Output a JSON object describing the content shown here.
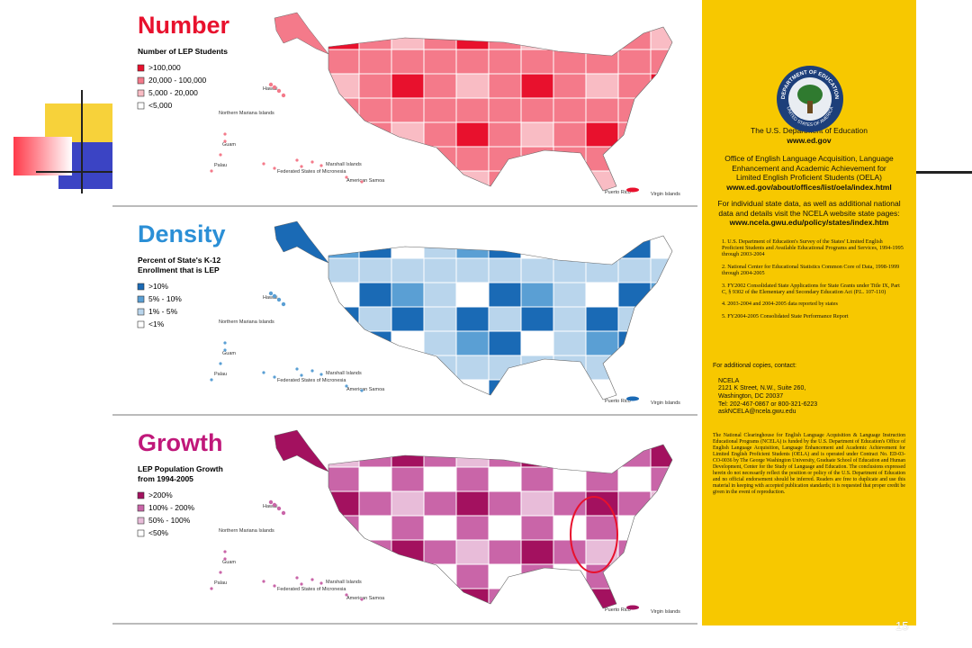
{
  "panels": [
    {
      "title": "Number",
      "legend_title": [
        "Number of LEP Students"
      ],
      "legend": [
        {
          "label": ">100,000",
          "color": "#e8112d"
        },
        {
          "label": "20,000 - 100,000",
          "color": "#f47a8a"
        },
        {
          "label": "5,000 - 20,000",
          "color": "#f9bcc4"
        },
        {
          "label": "<5,000",
          "color": "#ffffff"
        }
      ],
      "title_color": "#e8112d"
    },
    {
      "title": "Density",
      "legend_title": [
        "Percent of State's K-12",
        "Enrollment that is LEP"
      ],
      "legend": [
        {
          "label": ">10%",
          "color": "#1a6ab5"
        },
        {
          "label": "5% - 10%",
          "color": "#5a9fd4"
        },
        {
          "label": "1% - 5%",
          "color": "#b9d5ec"
        },
        {
          "label": "<1%",
          "color": "#ffffff"
        }
      ],
      "title_color": "#2b8fd6"
    },
    {
      "title": "Growth",
      "legend_title": [
        "LEP Population Growth",
        "from 1994-2005"
      ],
      "legend": [
        {
          "label": ">200%",
          "color": "#a3115f"
        },
        {
          "label": "100% - 200%",
          "color": "#c965a8"
        },
        {
          "label": "50% - 100%",
          "color": "#e8bcd9"
        },
        {
          "label": "<50%",
          "color": "#ffffff"
        }
      ],
      "title_color": "#c0187a"
    }
  ],
  "island_labels": [
    "Hawaii",
    "Northern Mariana Islands",
    "Guam",
    "Palau",
    "Marshall Islands",
    "Federated States of Micronesia",
    "American Samoa",
    "Puerto Rico",
    "Virgin Islands"
  ],
  "sidebar": {
    "seal_top": "DEPARTMENT OF EDUCATION",
    "seal_bottom": "UNITED STATES OF AMERICA",
    "department": "The U.S. Department of Education",
    "department_url": "www.ed.gov",
    "office": "Office of English Language Acquisition, Language Enhancement and Academic Achievement for Limited English Proficient Students (OELA)",
    "office_url": "www.ed.gov/about/offices/list/oela/index.html",
    "state_data": "For individual state data, as well as additional national data and details visit the NCELA website state pages:",
    "state_url": "www.ncela.gwu.edu/policy/states/index.htm",
    "footnotes": [
      "1. U.S. Department of Education's Survey of the States' Limited English Proficient Students and Available Educational Programs and Services, 1994-1995 through 2003-2004",
      "2. National Center for Educational Statistics Common Core of Data, 1998-1999 through 2004-2005",
      "3. FY2002 Consolidated State Applications for State Grants under Title IX, Part C, § 9302 of the Elementary and Secondary Education Act (P.L. 107-110)",
      "4. 2003-2004 and 2004-2005 data reported by states",
      "5. FY2004-2005 Consolidated State Performance Report"
    ],
    "copies": "For additional copies, contact:",
    "contact": [
      "NCELA",
      "2121 K Street, N.W., Suite 260,",
      "Washington, DC 20037",
      "Tel: 202-467-0867 or 800-321-6223",
      "askNCELA@ncela.gwu.edu"
    ],
    "disclaimer": "The National Clearinghouse for English Language Acquisition & Language Instruction Educational Programs (NCELA) is funded by the U.S. Department of Education's Office of English Language Acquisition, Language Enhancement and Academic Achievement for Limited English Proficient Students (OELA) and is operated under Contract No. ED-03-CO-0036 by The George Washington University, Graduate School of Education and Human Development, Center for the Study of Language and Education. The conclusions expressed herein do not necessarily reflect the position or policy of the U.S. Department of Education and no official endorsement should be inferred. Readers are free to duplicate and use this material in keeping with accepted publication standards; it is requested that proper credit be given in the event of reproduction."
  },
  "page_number": "15"
}
